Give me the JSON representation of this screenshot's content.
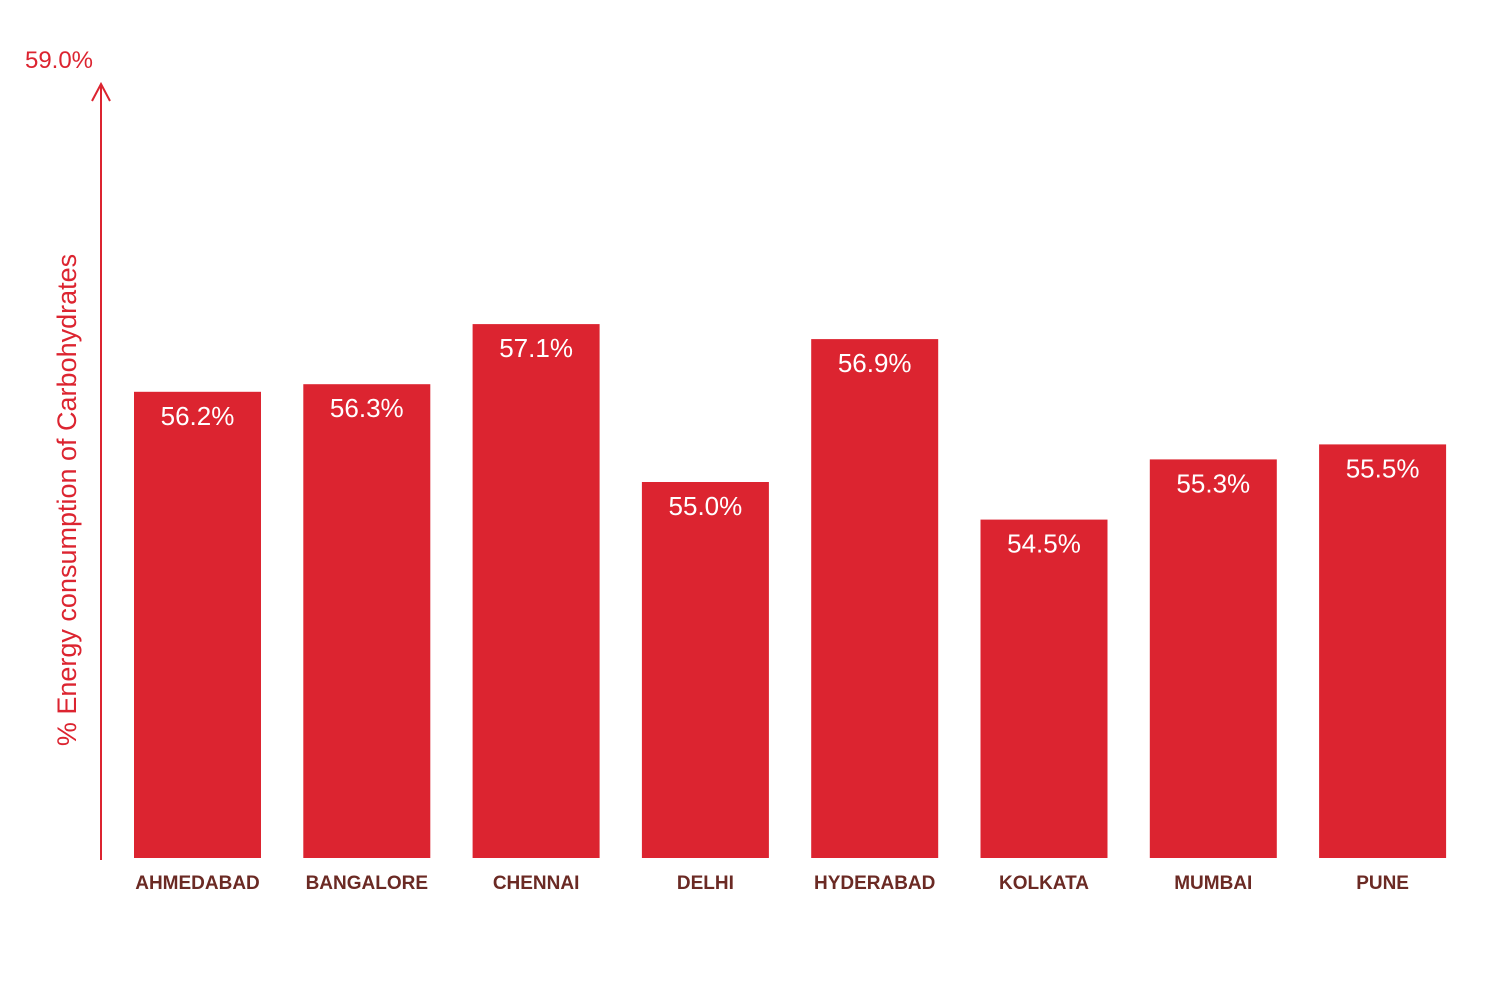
{
  "chart_data": {
    "type": "bar",
    "categories": [
      "AHMEDABAD",
      "BANGALORE",
      "CHENNAI",
      "DELHI",
      "HYDERABAD",
      "KOLKATA",
      "MUMBAI",
      "PUNE"
    ],
    "values": [
      56.2,
      56.3,
      57.1,
      55.0,
      56.9,
      54.5,
      55.3,
      55.5
    ],
    "value_labels": [
      "56.2%",
      "56.3%",
      "57.1%",
      "55.0%",
      "56.9%",
      "54.5%",
      "55.3%",
      "55.5%"
    ],
    "title": "",
    "xlabel": "",
    "ylabel": "% Energy consumption of Carbohydrates",
    "y_axis_top_label": "59.0%",
    "ylim": [
      50.0,
      59.0
    ],
    "grid": false,
    "legend": "none"
  },
  "colors": {
    "bar": "#dc2430",
    "axis": "#dc2430",
    "axis_text": "#dc2430",
    "category_text": "#6b2a24",
    "value_text": "#ffffff"
  }
}
